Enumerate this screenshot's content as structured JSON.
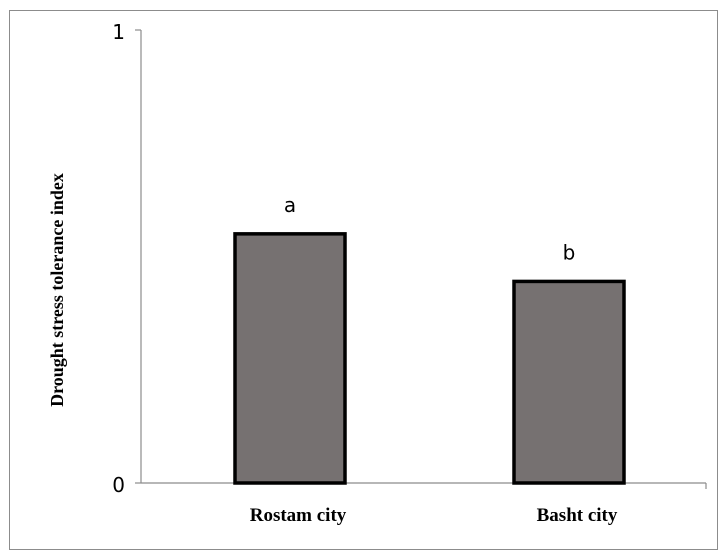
{
  "chart_data": {
    "type": "bar",
    "categories": [
      "Rostam city",
      "Basht city"
    ],
    "values": [
      0.55,
      0.445
    ],
    "data_labels": [
      "a",
      "b"
    ],
    "ylabel": "Drought stress tolerance index",
    "xlabel": "",
    "ylim": [
      0,
      1
    ],
    "y_ticks": [
      "0",
      "1"
    ],
    "grid": false,
    "legend": "none",
    "colors": {
      "bar_fill": "#767171",
      "bar_stroke": "#000000",
      "axis": "#8c8c8c"
    }
  }
}
